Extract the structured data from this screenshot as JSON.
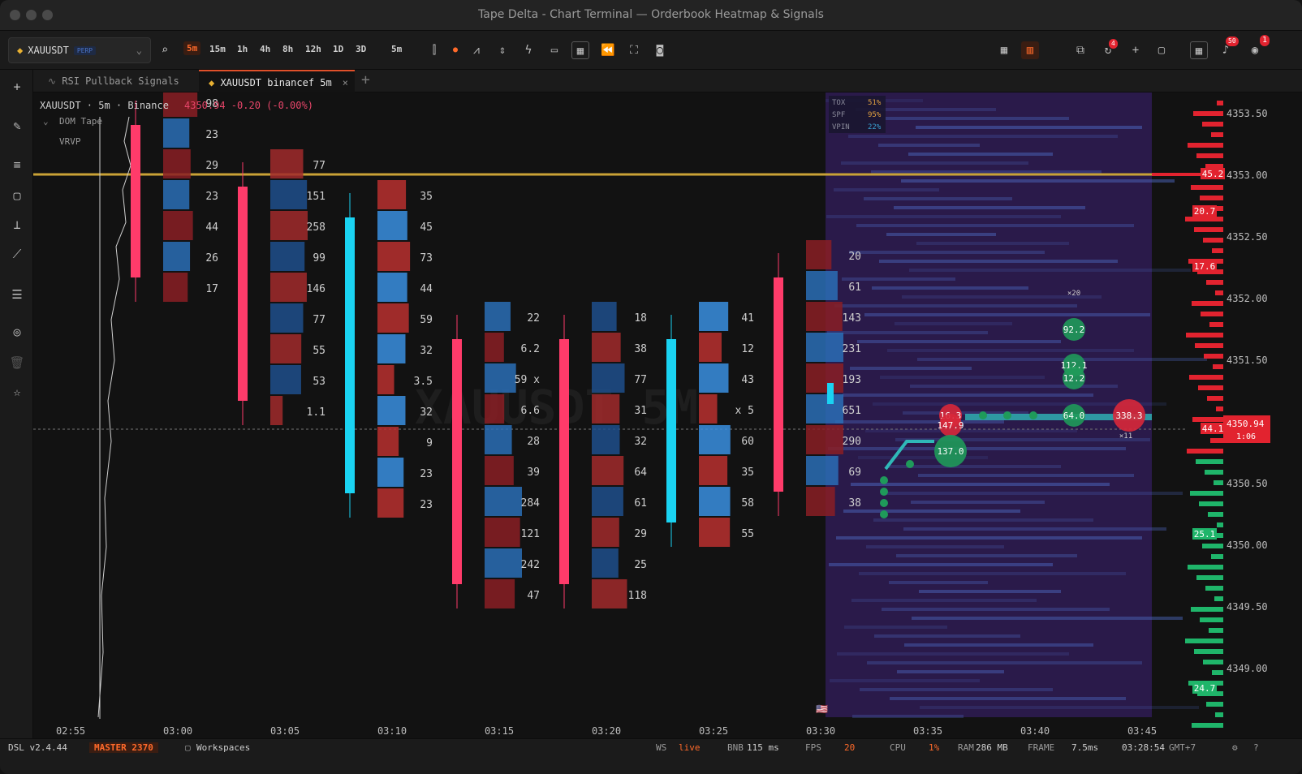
{
  "window": {
    "title": "Tape Delta - Chart Terminal — Orderbook Heatmap & Signals"
  },
  "toolbar": {
    "symbol": "XAUUSDT",
    "symbol_tag": "PERP",
    "timeframes": [
      "5m",
      "15m",
      "1h",
      "4h",
      "8h",
      "12h",
      "1D",
      "3D"
    ],
    "active_timeframe": "5m",
    "interval_select": "5m",
    "icons": [
      "search-icon",
      "candles-icon",
      "record-dot-icon",
      "line-chart-icon",
      "compare-icon",
      "lightning-icon",
      "briefcase-icon",
      "grid-layout-icon",
      "rewind-icon",
      "fullscreen-icon",
      "camera-icon"
    ],
    "right_badges": {
      "notifications": "50",
      "user": "1",
      "refresh": "4"
    }
  },
  "tabs": [
    {
      "label": "RSI Pullback Signals",
      "active": false
    },
    {
      "label": "XAUUSDT binancef 5m",
      "active": true
    }
  ],
  "legend": {
    "line1_symbol": "XAUUSDT · 5m · Binance",
    "line1_price": "4350.94 -0.20 (-0.00%)",
    "indicator1": "DOM Tape",
    "indicator2": "VRVP"
  },
  "watermark": "XAUUSDT 5M",
  "stats": [
    {
      "label": "TOX",
      "value": "51%"
    },
    {
      "label": "SPF",
      "value": "95%"
    },
    {
      "label": "VPIN",
      "value": "22%"
    }
  ],
  "price_axis": {
    "labels": [
      "4353.50",
      "4353.00",
      "4352.50",
      "4352.00",
      "4351.50",
      "4351.00",
      "4350.50",
      "4350.00",
      "4349.50",
      "4349.00"
    ],
    "current_price": "4350.94",
    "countdown": "1:06",
    "level_tags": [
      "45.2",
      "20.7",
      "17.6",
      "44.1",
      "25.1",
      "24.7"
    ]
  },
  "time_axis": [
    "02:55",
    "03:00",
    "03:05",
    "03:10",
    "03:15",
    "03:20",
    "03:25",
    "03:30",
    "03:35",
    "03:40",
    "03:45"
  ],
  "chart_data": {
    "type": "footprint",
    "clusters": [
      {
        "time": "02:55",
        "values": [
          "98",
          "23",
          "29",
          "23",
          "44",
          "26",
          "17"
        ]
      },
      {
        "time": "03:00",
        "values": [
          "77",
          "151",
          "258",
          "99",
          "146",
          "77",
          "55",
          "53",
          "1.1"
        ]
      },
      {
        "time": "03:05",
        "values": [
          "35",
          "45",
          "73",
          "44",
          "59",
          "32",
          "3.5",
          "32",
          "9",
          "23",
          "23"
        ]
      },
      {
        "time": "03:10",
        "values": [
          "22",
          "6.2",
          "59 x",
          "6.6",
          "28",
          "39",
          "284",
          "121",
          "242",
          "47"
        ]
      },
      {
        "time": "03:15",
        "values": [
          "18",
          "38",
          "77",
          "31",
          "32",
          "64",
          "61",
          "29",
          "25",
          "118"
        ]
      },
      {
        "time": "03:20",
        "values": [
          "41",
          "12",
          "43",
          "x 5",
          "60",
          "35",
          "58",
          "55"
        ]
      },
      {
        "time": "03:25",
        "values": [
          "20",
          "61",
          "143",
          "231",
          "193",
          "651",
          "290",
          "69",
          "38"
        ]
      }
    ],
    "bubbles": [
      "16.3",
      "147.9",
      "137.0",
      "92.2",
      "112.1",
      "12.2",
      "64.0",
      "338.3"
    ],
    "bubble_tags": [
      "×20",
      "×11"
    ]
  },
  "statusbar": {
    "version": "DSL v2.4.44",
    "branch": "MASTER 2370",
    "workspaces": "Workspaces",
    "ws_label": "WS",
    "ws_value": "live",
    "bnb_label": "BNB",
    "bnb_value": "115 ms",
    "fps_label": "FPS",
    "fps_value": "20",
    "cpu_label": "CPU",
    "cpu_value": "1%",
    "ram_label": "RAM",
    "ram_value": "286 MB",
    "frame_label": "FRAME",
    "frame_value": "7.5ms",
    "clock": "03:28:54",
    "tz": "GMT+7"
  },
  "colors": {
    "bull": "#2f86d6",
    "bear": "#b8302f",
    "wick_up": "#1ad3f2",
    "wick_down": "#ff3b6a",
    "accent": "#e0502a",
    "level_line": "#c9a236"
  }
}
